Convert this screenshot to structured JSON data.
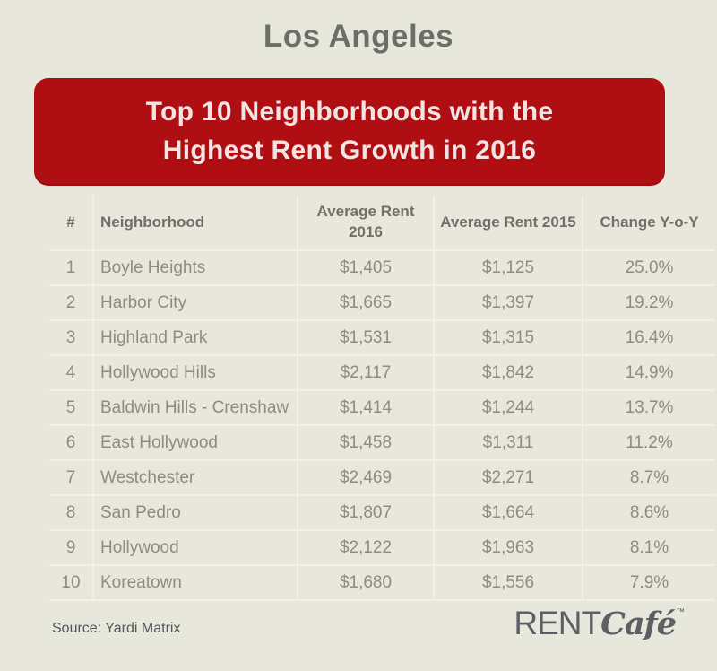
{
  "page": {
    "background": "#E8E7DC",
    "title": "Los Angeles"
  },
  "banner": {
    "line1": "Top 10 Neighborhoods with the",
    "line2": "Highest Rent Growth in 2016",
    "background": "#AF0E13",
    "text_color": "#F2E4E2"
  },
  "chart_data": {
    "type": "table",
    "title": "Top 10 Neighborhoods with the Highest Rent Growth in 2016",
    "region": "Los Angeles",
    "columns": [
      "#",
      "Neighborhood",
      "Average Rent 2016",
      "Average Rent 2015",
      "Change Y-o-Y"
    ],
    "rows": [
      {
        "rank": "1",
        "neighborhood": "Boyle Heights",
        "avg_rent_2016": "$1,405",
        "avg_rent_2015": "$1,125",
        "change_yoy": "25.0%"
      },
      {
        "rank": "2",
        "neighborhood": "Harbor City",
        "avg_rent_2016": "$1,665",
        "avg_rent_2015": "$1,397",
        "change_yoy": "19.2%"
      },
      {
        "rank": "3",
        "neighborhood": "Highland Park",
        "avg_rent_2016": "$1,531",
        "avg_rent_2015": "$1,315",
        "change_yoy": "16.4%"
      },
      {
        "rank": "4",
        "neighborhood": "Hollywood Hills",
        "avg_rent_2016": "$2,117",
        "avg_rent_2015": "$1,842",
        "change_yoy": "14.9%"
      },
      {
        "rank": "5",
        "neighborhood": "Baldwin Hills - Crenshaw",
        "avg_rent_2016": "$1,414",
        "avg_rent_2015": "$1,244",
        "change_yoy": "13.7%"
      },
      {
        "rank": "6",
        "neighborhood": "East Hollywood",
        "avg_rent_2016": "$1,458",
        "avg_rent_2015": "$1,311",
        "change_yoy": "11.2%"
      },
      {
        "rank": "7",
        "neighborhood": "Westchester",
        "avg_rent_2016": "$2,469",
        "avg_rent_2015": "$2,271",
        "change_yoy": "8.7%"
      },
      {
        "rank": "8",
        "neighborhood": "San Pedro",
        "avg_rent_2016": "$1,807",
        "avg_rent_2015": "$1,664",
        "change_yoy": "8.6%"
      },
      {
        "rank": "9",
        "neighborhood": "Hollywood",
        "avg_rent_2016": "$2,122",
        "avg_rent_2015": "$1,963",
        "change_yoy": "8.1%"
      },
      {
        "rank": "10",
        "neighborhood": "Koreatown",
        "avg_rent_2016": "$1,680",
        "avg_rent_2015": "$1,556",
        "change_yoy": "7.9%"
      }
    ],
    "numeric": {
      "categories": [
        "Boyle Heights",
        "Harbor City",
        "Highland Park",
        "Hollywood Hills",
        "Baldwin Hills - Crenshaw",
        "East Hollywood",
        "Westchester",
        "San Pedro",
        "Hollywood",
        "Koreatown"
      ],
      "series": [
        {
          "name": "Average Rent 2016",
          "values": [
            1405,
            1665,
            1531,
            2117,
            1414,
            1458,
            2469,
            1807,
            2122,
            1680
          ]
        },
        {
          "name": "Average Rent 2015",
          "values": [
            1125,
            1397,
            1315,
            1842,
            1244,
            1311,
            2271,
            1664,
            1963,
            1556
          ]
        },
        {
          "name": "Change Y-o-Y (%)",
          "values": [
            25.0,
            19.2,
            16.4,
            14.9,
            13.7,
            11.2,
            8.7,
            8.6,
            8.1,
            7.9
          ]
        }
      ]
    },
    "source": "Yardi Matrix"
  },
  "footer": {
    "source_label": "Source: Yardi Matrix",
    "logo": {
      "rent": "RENT",
      "cafe": "Café",
      "tm": "™"
    }
  },
  "colors": {
    "page_background": "#E8E7DC",
    "banner_red": "#AF0E13",
    "banner_text": "#F2E4E2",
    "title_gray": "#6E6E68",
    "header_text": "#716F6A",
    "row_text": "#8D8B83",
    "divider": "#F2F1E7",
    "footer_text": "#55565A",
    "logo_gray": "#5E5F63"
  }
}
